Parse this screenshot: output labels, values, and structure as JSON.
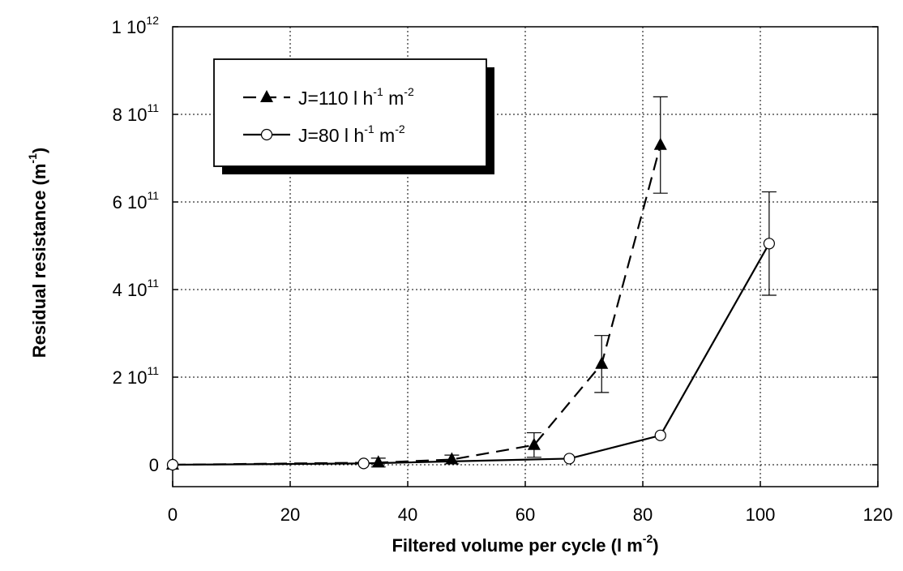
{
  "chart_data": {
    "type": "line",
    "xlabel": "Filtered volume per cycle (l m-2)",
    "ylabel": "Residual resistance (m-1)",
    "xlim": [
      0,
      120
    ],
    "ylim": [
      -50000000000,
      1000000000000
    ],
    "grid": true,
    "legend_position": "top-left",
    "x_ticks": [
      0,
      20,
      40,
      60,
      80,
      100,
      120
    ],
    "x_tick_labels": [
      "0",
      "20",
      "40",
      "60",
      "80",
      "100",
      "120"
    ],
    "y_ticks": [
      0,
      200000000000,
      400000000000,
      600000000000,
      800000000000,
      1000000000000
    ],
    "y_tick_labels": [
      {
        "mantissa": "0",
        "exp": ""
      },
      {
        "mantissa": "2 10",
        "exp": "11"
      },
      {
        "mantissa": "4 10",
        "exp": "11"
      },
      {
        "mantissa": "6 10",
        "exp": "11"
      },
      {
        "mantissa": "8 10",
        "exp": "11"
      },
      {
        "mantissa": "1 10",
        "exp": "12"
      }
    ],
    "series": [
      {
        "name": "J=110 l h-1 m-2",
        "name_parts": [
          {
            "text": "J=110 l h",
            "sup": false
          },
          {
            "text": "-1",
            "sup": true
          },
          {
            "text": " m",
            "sup": false
          },
          {
            "text": "-2",
            "sup": true
          }
        ],
        "marker": "filled-triangle",
        "line_style": "dashed",
        "x": [
          0,
          35,
          47.5,
          61.5,
          73,
          83
        ],
        "y": [
          0,
          5000000000,
          12000000000,
          45000000000,
          230000000000,
          730000000000
        ],
        "error": [
          0,
          10000000000,
          10000000000,
          28000000000,
          65000000000,
          110000000000
        ]
      },
      {
        "name": "J=80 l h-1 m-2",
        "name_parts": [
          {
            "text": "J=80 l h",
            "sup": false
          },
          {
            "text": "-1",
            "sup": true
          },
          {
            "text": " m",
            "sup": false
          },
          {
            "text": "-2",
            "sup": true
          }
        ],
        "marker": "open-circle",
        "line_style": "solid",
        "x": [
          0,
          32.5,
          67.5,
          83,
          101.5
        ],
        "y": [
          0,
          3000000000,
          14000000000,
          67000000000,
          505000000000
        ],
        "error": [
          0,
          0,
          0,
          0,
          118000000000
        ]
      }
    ]
  }
}
